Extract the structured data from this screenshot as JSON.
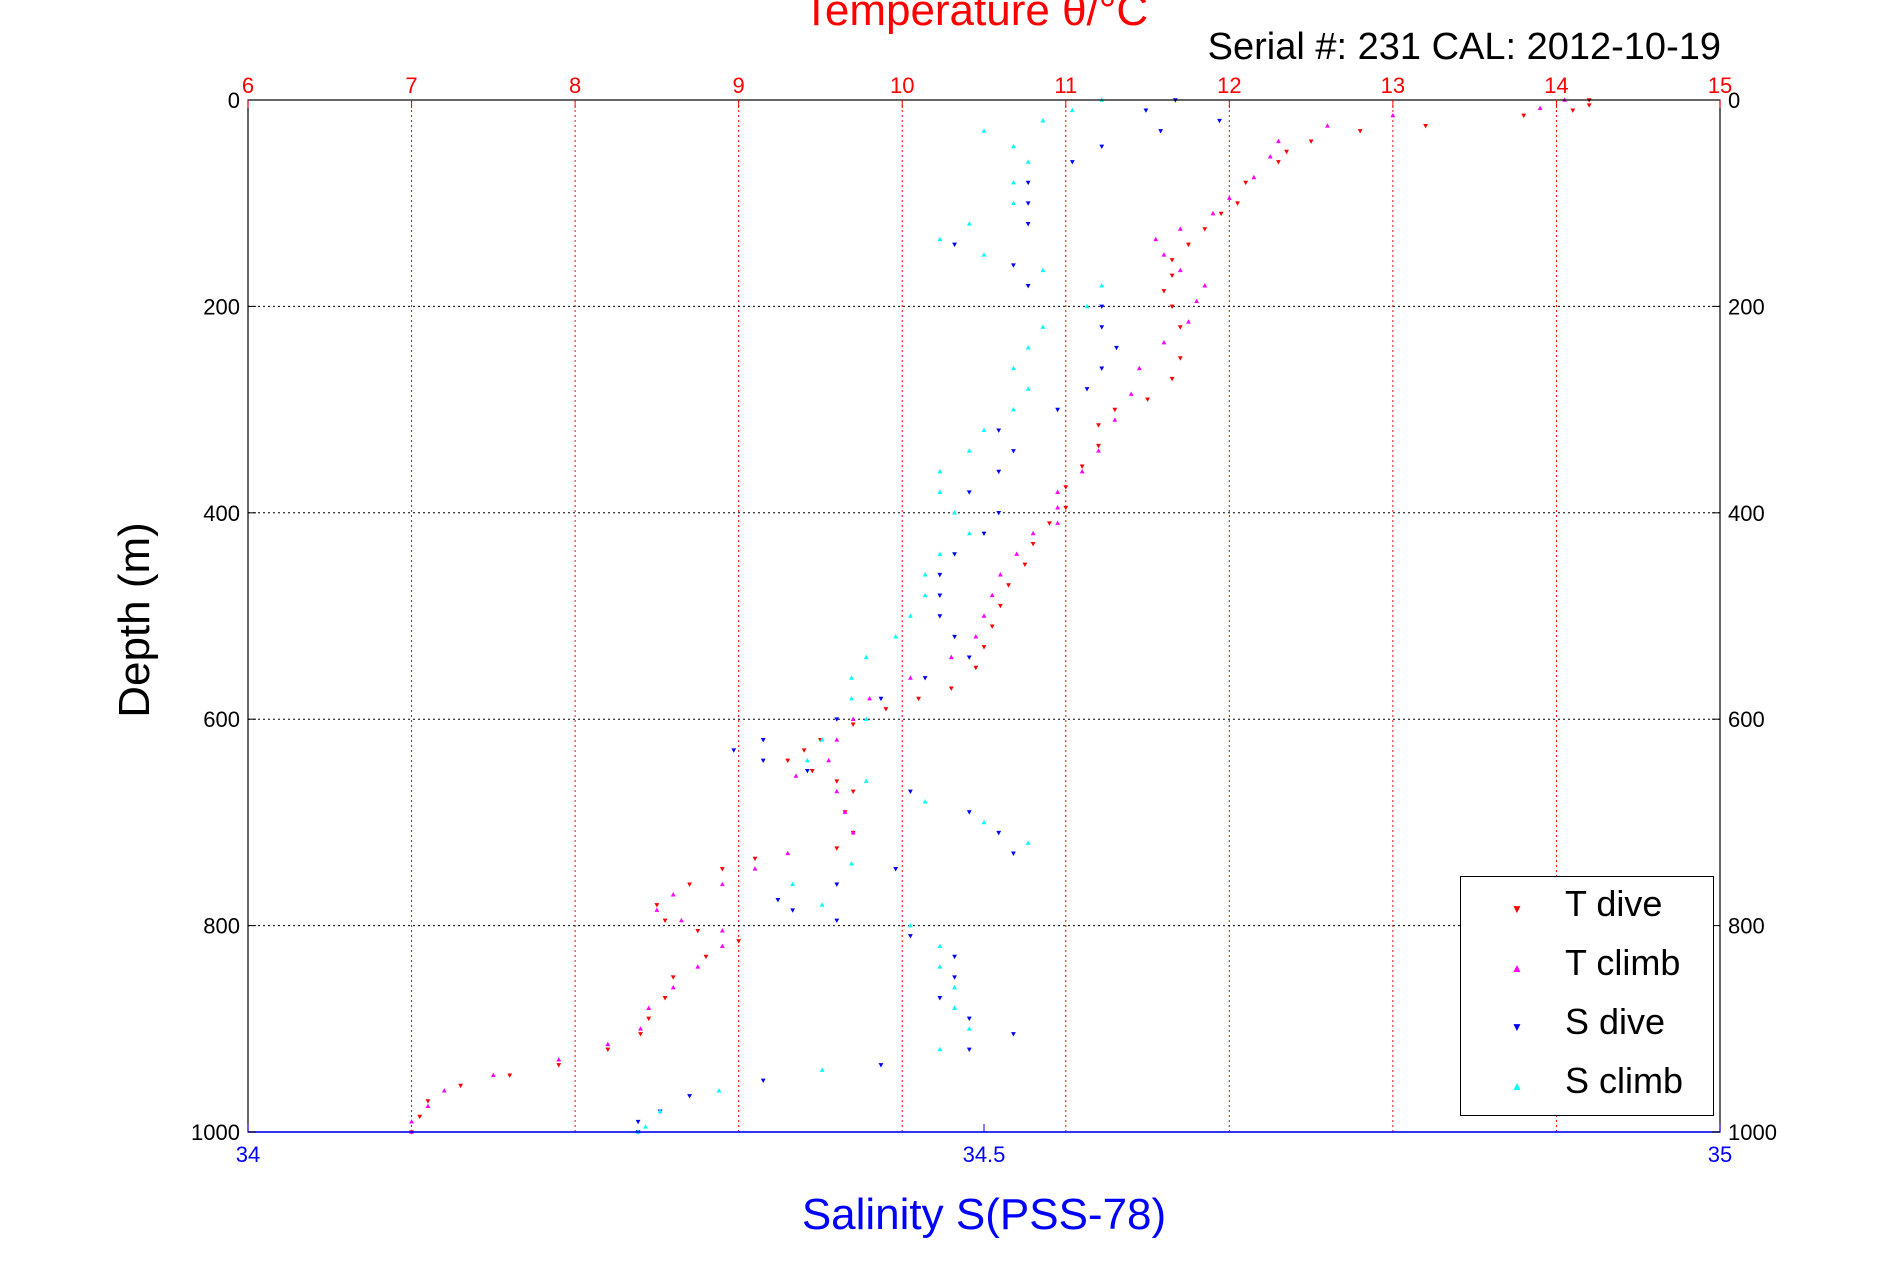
{
  "chart_data": {
    "type": "scatter",
    "title": "Temperature θ/°C",
    "subtitle": "Serial #: 231  CAL: 2012-10-19",
    "ylabel": "Depth (m)",
    "xlabel_bottom": "Salinity S(PSS-78)",
    "xlabel_top": "Temperature θ/°C",
    "y_axis": {
      "range": [
        0,
        1000
      ],
      "reversed": true,
      "ticks": [
        0,
        200,
        400,
        600,
        800,
        1000
      ]
    },
    "x_top": {
      "range": [
        6,
        15
      ],
      "ticks": [
        6,
        7,
        8,
        9,
        10,
        11,
        12,
        13,
        14,
        15
      ],
      "color": "#ff0000"
    },
    "x_bottom": {
      "range": [
        34,
        35
      ],
      "ticks": [
        34,
        34.5,
        35
      ],
      "tick_labels": [
        "34",
        "34.5",
        "35"
      ],
      "color": "#0000ff"
    },
    "grid": {
      "vertical": "red dotted at temperature ticks",
      "horizontal": "black dotted at depth ticks"
    },
    "legend": {
      "position": "bottom-right",
      "entries": [
        "T dive",
        "T climb",
        "S dive",
        "S climb"
      ]
    },
    "series": [
      {
        "name": "T dive",
        "axis": "temperature",
        "color": "#ff0000",
        "marker": "triangle-down",
        "points": [
          [
            0,
            14.2
          ],
          [
            5,
            14.2
          ],
          [
            10,
            14.1
          ],
          [
            15,
            13.8
          ],
          [
            25,
            13.2
          ],
          [
            30,
            12.8
          ],
          [
            40,
            12.5
          ],
          [
            50,
            12.35
          ],
          [
            60,
            12.3
          ],
          [
            80,
            12.1
          ],
          [
            100,
            12.05
          ],
          [
            110,
            11.95
          ],
          [
            125,
            11.85
          ],
          [
            140,
            11.75
          ],
          [
            155,
            11.65
          ],
          [
            170,
            11.65
          ],
          [
            185,
            11.6
          ],
          [
            200,
            11.65
          ],
          [
            220,
            11.7
          ],
          [
            250,
            11.7
          ],
          [
            270,
            11.65
          ],
          [
            290,
            11.5
          ],
          [
            300,
            11.3
          ],
          [
            315,
            11.2
          ],
          [
            335,
            11.2
          ],
          [
            355,
            11.1
          ],
          [
            375,
            11.0
          ],
          [
            395,
            11.0
          ],
          [
            410,
            10.9
          ],
          [
            430,
            10.8
          ],
          [
            450,
            10.75
          ],
          [
            470,
            10.65
          ],
          [
            490,
            10.6
          ],
          [
            510,
            10.55
          ],
          [
            530,
            10.5
          ],
          [
            550,
            10.45
          ],
          [
            570,
            10.3
          ],
          [
            580,
            10.1
          ],
          [
            590,
            9.9
          ],
          [
            605,
            9.7
          ],
          [
            620,
            9.5
          ],
          [
            630,
            9.4
          ],
          [
            640,
            9.3
          ],
          [
            650,
            9.45
          ],
          [
            660,
            9.6
          ],
          [
            670,
            9.7
          ],
          [
            690,
            9.65
          ],
          [
            710,
            9.7
          ],
          [
            725,
            9.6
          ],
          [
            735,
            9.1
          ],
          [
            745,
            8.9
          ],
          [
            760,
            8.7
          ],
          [
            780,
            8.5
          ],
          [
            795,
            8.55
          ],
          [
            805,
            8.75
          ],
          [
            815,
            9.0
          ],
          [
            830,
            8.8
          ],
          [
            850,
            8.6
          ],
          [
            870,
            8.55
          ],
          [
            890,
            8.45
          ],
          [
            905,
            8.4
          ],
          [
            920,
            8.2
          ],
          [
            935,
            7.9
          ],
          [
            945,
            7.6
          ],
          [
            955,
            7.3
          ],
          [
            970,
            7.1
          ],
          [
            985,
            7.05
          ],
          [
            1000,
            7.0
          ]
        ]
      },
      {
        "name": "T climb",
        "axis": "temperature",
        "color": "#ff00ff",
        "marker": "triangle-up",
        "points": [
          [
            0,
            14.05
          ],
          [
            8,
            13.9
          ],
          [
            15,
            13.0
          ],
          [
            25,
            12.6
          ],
          [
            40,
            12.3
          ],
          [
            55,
            12.25
          ],
          [
            75,
            12.15
          ],
          [
            95,
            12.0
          ],
          [
            110,
            11.9
          ],
          [
            125,
            11.7
          ],
          [
            135,
            11.55
          ],
          [
            150,
            11.6
          ],
          [
            165,
            11.7
          ],
          [
            180,
            11.85
          ],
          [
            195,
            11.8
          ],
          [
            215,
            11.75
          ],
          [
            235,
            11.6
          ],
          [
            260,
            11.45
          ],
          [
            285,
            11.4
          ],
          [
            310,
            11.3
          ],
          [
            340,
            11.2
          ],
          [
            360,
            11.1
          ],
          [
            380,
            10.95
          ],
          [
            395,
            10.95
          ],
          [
            410,
            10.95
          ],
          [
            420,
            10.8
          ],
          [
            440,
            10.7
          ],
          [
            460,
            10.6
          ],
          [
            480,
            10.55
          ],
          [
            500,
            10.5
          ],
          [
            520,
            10.45
          ],
          [
            540,
            10.3
          ],
          [
            560,
            10.05
          ],
          [
            580,
            9.8
          ],
          [
            600,
            9.7
          ],
          [
            620,
            9.6
          ],
          [
            640,
            9.55
          ],
          [
            655,
            9.35
          ],
          [
            670,
            9.6
          ],
          [
            690,
            9.65
          ],
          [
            710,
            9.7
          ],
          [
            730,
            9.3
          ],
          [
            745,
            9.1
          ],
          [
            760,
            8.9
          ],
          [
            770,
            8.6
          ],
          [
            785,
            8.5
          ],
          [
            795,
            8.65
          ],
          [
            805,
            8.9
          ],
          [
            820,
            8.9
          ],
          [
            840,
            8.75
          ],
          [
            860,
            8.6
          ],
          [
            880,
            8.45
          ],
          [
            900,
            8.4
          ],
          [
            915,
            8.2
          ],
          [
            930,
            7.9
          ],
          [
            945,
            7.5
          ],
          [
            960,
            7.2
          ],
          [
            975,
            7.1
          ],
          [
            990,
            7.0
          ],
          [
            1000,
            7.0
          ]
        ]
      },
      {
        "name": "S dive",
        "axis": "salinity",
        "color": "#0000ff",
        "marker": "triangle-down",
        "points": [
          [
            0,
            34.63
          ],
          [
            10,
            34.61
          ],
          [
            20,
            34.66
          ],
          [
            30,
            34.62
          ],
          [
            45,
            34.58
          ],
          [
            60,
            34.56
          ],
          [
            80,
            34.53
          ],
          [
            100,
            34.53
          ],
          [
            120,
            34.53
          ],
          [
            140,
            34.48
          ],
          [
            160,
            34.52
          ],
          [
            180,
            34.53
          ],
          [
            200,
            34.58
          ],
          [
            220,
            34.58
          ],
          [
            240,
            34.59
          ],
          [
            260,
            34.58
          ],
          [
            280,
            34.57
          ],
          [
            300,
            34.55
          ],
          [
            320,
            34.51
          ],
          [
            340,
            34.52
          ],
          [
            360,
            34.51
          ],
          [
            380,
            34.49
          ],
          [
            400,
            34.51
          ],
          [
            420,
            34.5
          ],
          [
            440,
            34.48
          ],
          [
            460,
            34.47
          ],
          [
            480,
            34.47
          ],
          [
            500,
            34.47
          ],
          [
            520,
            34.48
          ],
          [
            540,
            34.49
          ],
          [
            560,
            34.46
          ],
          [
            580,
            34.43
          ],
          [
            600,
            34.4
          ],
          [
            620,
            34.35
          ],
          [
            630,
            34.33
          ],
          [
            640,
            34.35
          ],
          [
            650,
            34.38
          ],
          [
            670,
            34.45
          ],
          [
            690,
            34.49
          ],
          [
            710,
            34.51
          ],
          [
            730,
            34.52
          ],
          [
            745,
            34.44
          ],
          [
            760,
            34.4
          ],
          [
            775,
            34.36
          ],
          [
            785,
            34.37
          ],
          [
            795,
            34.4
          ],
          [
            810,
            34.45
          ],
          [
            830,
            34.48
          ],
          [
            850,
            34.48
          ],
          [
            870,
            34.47
          ],
          [
            890,
            34.49
          ],
          [
            905,
            34.52
          ],
          [
            920,
            34.49
          ],
          [
            935,
            34.43
          ],
          [
            950,
            34.35
          ],
          [
            965,
            34.3
          ],
          [
            980,
            34.28
          ],
          [
            990,
            34.265
          ],
          [
            1000,
            34.265
          ]
        ]
      },
      {
        "name": "S climb",
        "axis": "salinity",
        "color": "#00ffff",
        "marker": "triangle-up",
        "points": [
          [
            0,
            34.58
          ],
          [
            10,
            34.56
          ],
          [
            20,
            34.54
          ],
          [
            30,
            34.5
          ],
          [
            45,
            34.52
          ],
          [
            60,
            34.53
          ],
          [
            80,
            34.52
          ],
          [
            100,
            34.52
          ],
          [
            120,
            34.49
          ],
          [
            135,
            34.47
          ],
          [
            150,
            34.5
          ],
          [
            165,
            34.54
          ],
          [
            180,
            34.58
          ],
          [
            200,
            34.57
          ],
          [
            220,
            34.54
          ],
          [
            240,
            34.53
          ],
          [
            260,
            34.52
          ],
          [
            280,
            34.53
          ],
          [
            300,
            34.52
          ],
          [
            320,
            34.5
          ],
          [
            340,
            34.49
          ],
          [
            360,
            34.47
          ],
          [
            380,
            34.47
          ],
          [
            400,
            34.48
          ],
          [
            420,
            34.49
          ],
          [
            440,
            34.47
          ],
          [
            460,
            34.46
          ],
          [
            480,
            34.46
          ],
          [
            500,
            34.45
          ],
          [
            520,
            34.44
          ],
          [
            540,
            34.42
          ],
          [
            560,
            34.41
          ],
          [
            580,
            34.41
          ],
          [
            600,
            34.42
          ],
          [
            620,
            34.39
          ],
          [
            640,
            34.38
          ],
          [
            660,
            34.42
          ],
          [
            680,
            34.46
          ],
          [
            700,
            34.5
          ],
          [
            720,
            34.53
          ],
          [
            740,
            34.41
          ],
          [
            760,
            34.37
          ],
          [
            780,
            34.39
          ],
          [
            800,
            34.45
          ],
          [
            820,
            34.47
          ],
          [
            840,
            34.47
          ],
          [
            860,
            34.48
          ],
          [
            880,
            34.48
          ],
          [
            900,
            34.49
          ],
          [
            920,
            34.47
          ],
          [
            940,
            34.39
          ],
          [
            960,
            34.32
          ],
          [
            980,
            34.28
          ],
          [
            995,
            34.27
          ],
          [
            1000,
            34.265
          ]
        ]
      }
    ]
  }
}
